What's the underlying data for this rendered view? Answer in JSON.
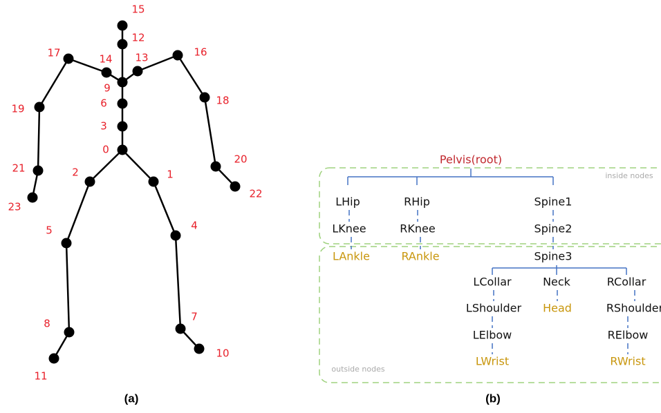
{
  "skeleton": {
    "joints": [
      "0",
      "1",
      "2",
      "3",
      "4",
      "5",
      "6",
      "7",
      "8",
      "9",
      "10",
      "11",
      "12",
      "13",
      "14",
      "15",
      "16",
      "17",
      "18",
      "19",
      "20",
      "21",
      "22",
      "23"
    ],
    "caption": "(a)"
  },
  "tree": {
    "nodes": [
      "Pelvis(root)",
      "LHip",
      "RHip",
      "Spine1",
      "LKnee",
      "RKnee",
      "Spine2",
      "LAnkle",
      "RAnkle",
      "Spine3",
      "LCollar",
      "Neck",
      "RCollar",
      "LShoulder",
      "Head",
      "RShoulder",
      "LElbow",
      "RElbow",
      "LWrist",
      "RWrist"
    ],
    "regions": [
      "inside nodes",
      "outside nodes"
    ],
    "caption": "(b)"
  }
}
